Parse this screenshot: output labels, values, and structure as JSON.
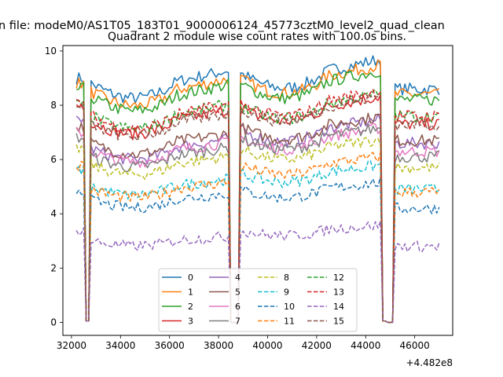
{
  "suptitle": "n file: modeM0/AS1T05_183T01_9000006124_45773cztM0_level2_quad_clean",
  "chart_data": {
    "type": "line",
    "title": "Quadrant 2 module wise count rates with 100.0s bins.",
    "xlabel": "",
    "ylabel": "",
    "x_offset_label": "+4.482e8",
    "xlim": [
      31650,
      47550
    ],
    "ylim": [
      -0.48,
      10.2
    ],
    "x_ticks": [
      32000,
      34000,
      36000,
      38000,
      40000,
      42000,
      44000,
      46000
    ],
    "x_tick_labels": [
      "32000",
      "34000",
      "36000",
      "38000",
      "40000",
      "42000",
      "44000",
      "46000"
    ],
    "y_ticks": [
      0,
      2,
      4,
      6,
      8,
      10
    ],
    "y_tick_labels": [
      "0",
      "2",
      "4",
      "6",
      "8",
      "10"
    ],
    "grid": false,
    "legend_position": "lower-center",
    "legend_columns": 4,
    "x": {
      "start": 32200,
      "end": 47000,
      "step": 100
    },
    "gaps": [
      [
        32550,
        32800
      ],
      [
        38400,
        38850
      ],
      [
        44650,
        45150
      ]
    ],
    "series": [
      {
        "name": "0",
        "color": "#1f77b4",
        "dash": "solid",
        "levels": [
          9.0,
          8.8,
          9.2,
          8.6
        ]
      },
      {
        "name": "1",
        "color": "#ff7f0e",
        "dash": "solid",
        "levels": [
          8.8,
          8.5,
          9.0,
          8.4
        ]
      },
      {
        "name": "2",
        "color": "#2ca02c",
        "dash": "solid",
        "levels": [
          8.6,
          8.3,
          8.8,
          8.2
        ]
      },
      {
        "name": "3",
        "color": "#d62728",
        "dash": "solid",
        "levels": [
          8.0,
          7.4,
          7.9,
          7.3
        ]
      },
      {
        "name": "4",
        "color": "#9467bd",
        "dash": "solid",
        "levels": [
          7.5,
          6.4,
          7.1,
          6.6
        ]
      },
      {
        "name": "5",
        "color": "#8c564b",
        "dash": "solid",
        "levels": [
          7.2,
          6.6,
          7.2,
          6.7
        ]
      },
      {
        "name": "6",
        "color": "#e377c2",
        "dash": "solid",
        "levels": [
          7.0,
          6.3,
          6.8,
          6.3
        ]
      },
      {
        "name": "7",
        "color": "#7f7f7f",
        "dash": "solid",
        "levels": [
          6.8,
          6.1,
          6.8,
          6.1
        ]
      },
      {
        "name": "8",
        "color": "#bcbd22",
        "dash": "dashed",
        "levels": [
          6.4,
          5.8,
          6.4,
          5.7
        ]
      },
      {
        "name": "9",
        "color": "#17becf",
        "dash": "dashed",
        "levels": [
          5.6,
          5.0,
          5.5,
          4.9
        ]
      },
      {
        "name": "10",
        "color": "#1f77b4",
        "dash": "dashed",
        "levels": [
          4.9,
          4.5,
          4.9,
          4.2
        ]
      },
      {
        "name": "11",
        "color": "#ff7f0e",
        "dash": "dashed",
        "levels": [
          5.8,
          4.9,
          5.8,
          4.8
        ]
      },
      {
        "name": "12",
        "color": "#2ca02c",
        "dash": "dashed",
        "levels": [
          8.0,
          7.6,
          8.0,
          7.6
        ]
      },
      {
        "name": "13",
        "color": "#d62728",
        "dash": "dashed",
        "levels": [
          8.1,
          7.6,
          8.1,
          7.6
        ]
      },
      {
        "name": "14",
        "color": "#9467bd",
        "dash": "dashed",
        "levels": [
          3.4,
          3.0,
          3.4,
          2.8
        ]
      },
      {
        "name": "15",
        "color": "#8c564b",
        "dash": "dashed",
        "levels": [
          7.9,
          7.3,
          7.9,
          7.3
        ]
      }
    ]
  }
}
